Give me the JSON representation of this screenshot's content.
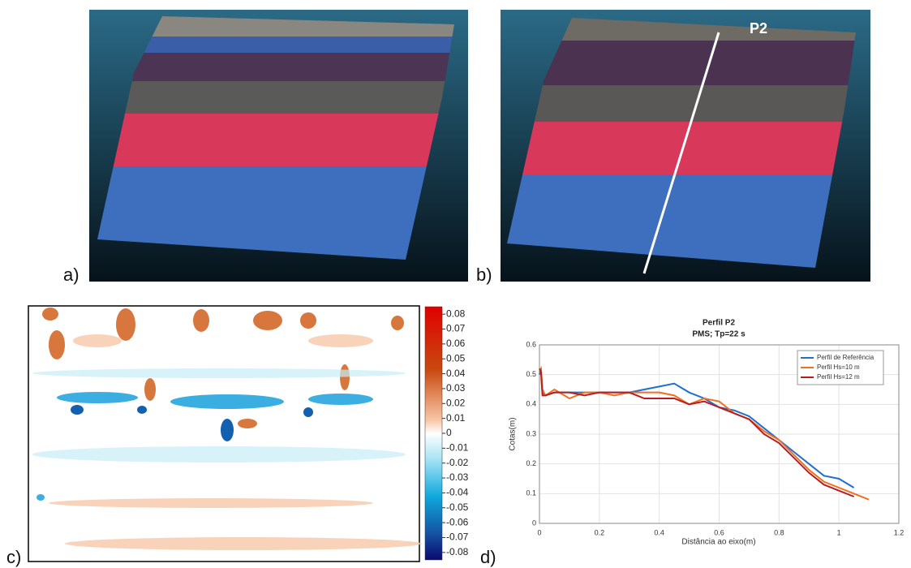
{
  "panel_labels": [
    "a)",
    "b)",
    "c)",
    "d)"
  ],
  "profile_label": "P2",
  "colorbar": {
    "lim": [
      -0.085,
      0.085
    ],
    "ticks": [
      0.08,
      0.07,
      0.06,
      0.05,
      0.04,
      0.03,
      0.02,
      0.01,
      0,
      -0.01,
      -0.02,
      -0.03,
      -0.04,
      -0.05,
      -0.06,
      -0.07,
      -0.08
    ]
  },
  "chart_data": {
    "type": "line",
    "title": "Perfil P2",
    "subtitle": "PMS; Tp=22 s",
    "x_label": "Distância ao eixo(m)",
    "y_label": "Cotas(m)",
    "x": [
      0,
      0.005,
      0.01,
      0.02,
      0.05,
      0.1,
      0.15,
      0.2,
      0.25,
      0.3,
      0.35,
      0.4,
      0.45,
      0.5,
      0.55,
      0.6,
      0.65,
      0.7,
      0.75,
      0.8,
      0.85,
      0.9,
      0.95,
      1.0,
      1.05,
      1.1
    ],
    "series": [
      {
        "name": "Perfil de Referência",
        "color": "#1f6fd1",
        "values": [
          0.5,
          0.52,
          0.44,
          0.43,
          0.44,
          0.44,
          0.44,
          0.44,
          0.44,
          0.44,
          0.45,
          0.46,
          0.47,
          0.44,
          0.42,
          0.39,
          0.38,
          0.36,
          0.32,
          0.28,
          0.24,
          0.2,
          0.16,
          0.15,
          0.12,
          null
        ]
      },
      {
        "name": "Perfil Hs=10 m",
        "color": "#f07020",
        "values": [
          0.51,
          0.52,
          0.45,
          0.43,
          0.45,
          0.42,
          0.44,
          0.44,
          0.43,
          0.44,
          0.44,
          0.44,
          0.43,
          0.4,
          0.42,
          0.41,
          0.37,
          0.35,
          0.31,
          0.28,
          0.23,
          0.18,
          0.14,
          0.12,
          0.1,
          0.08
        ]
      },
      {
        "name": "Perfil Hs=12 m",
        "color": "#b81e1e",
        "values": [
          0.52,
          0.51,
          0.43,
          0.43,
          0.44,
          0.44,
          0.43,
          0.44,
          0.44,
          0.44,
          0.42,
          0.42,
          0.42,
          0.4,
          0.41,
          0.39,
          0.37,
          0.35,
          0.3,
          0.27,
          0.22,
          0.17,
          0.13,
          0.11,
          0.09,
          null
        ]
      }
    ],
    "xlim": [
      0,
      1.2
    ],
    "xticks": [
      0,
      0.2,
      0.4,
      0.6,
      0.8,
      1,
      1.2
    ],
    "ylim": [
      0,
      0.6
    ],
    "yticks": [
      0,
      0.1,
      0.2,
      0.3,
      0.4,
      0.5,
      0.6
    ],
    "grid": true,
    "legend": "upper-right"
  }
}
